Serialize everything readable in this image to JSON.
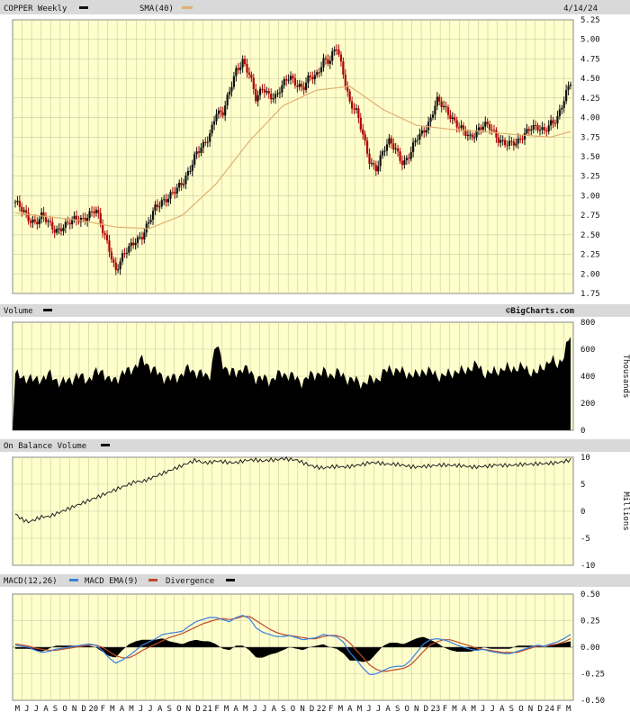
{
  "colors": {
    "plot_bg": "#ffffcc",
    "grid": "#c9c9a0",
    "header_bg": "#d9d9d9",
    "frame": "#888888",
    "up": "#111111",
    "down": "#b00000",
    "sma": "#e0b070",
    "macd": "#3a7fe0",
    "ema": "#c04a2a",
    "fill": "#000000",
    "text": "#111111"
  },
  "header": {
    "symbol_label": "COPPER Weekly",
    "sma_label": "SMA(40)",
    "date": "4/14/24"
  },
  "watermark": "©BigCharts.com",
  "panels": {
    "price": {
      "y_ticks": [
        "5.25",
        "5.00",
        "4.75",
        "4.50",
        "4.25",
        "4.00",
        "3.75",
        "3.50",
        "3.25",
        "3.00",
        "2.75",
        "2.50",
        "2.25",
        "2.00",
        "1.75"
      ]
    },
    "volume": {
      "title": "Volume",
      "y_ticks": [
        "800",
        "600",
        "400",
        "200",
        "0"
      ],
      "unit": "Thousands"
    },
    "obv": {
      "title": "On Balance Volume",
      "y_ticks": [
        "10",
        "5",
        "0",
        "-5",
        "-10"
      ],
      "unit": "Millions"
    },
    "macd": {
      "labels": [
        "MACD(12,26)",
        "MACD EMA(9)",
        "Divergence"
      ],
      "y_ticks": [
        "0.50",
        "0.25",
        "0.00",
        "-0.25",
        "-0.50"
      ]
    }
  },
  "x_axis": {
    "labels": [
      "M",
      "J",
      "J",
      "A",
      "S",
      "O",
      "N",
      "D",
      "20",
      "F",
      "M",
      "A",
      "M",
      "J",
      "J",
      "A",
      "S",
      "O",
      "N",
      "D",
      "21",
      "F",
      "M",
      "A",
      "M",
      "J",
      "J",
      "A",
      "S",
      "O",
      "N",
      "D",
      "22",
      "F",
      "M",
      "A",
      "M",
      "J",
      "J",
      "A",
      "S",
      "O",
      "N",
      "D",
      "23",
      "F",
      "M",
      "A",
      "M",
      "J",
      "J",
      "A",
      "S",
      "O",
      "N",
      "D",
      "24",
      "F",
      "M"
    ]
  },
  "chart_data": [
    {
      "type": "candlestick",
      "title": "COPPER Weekly",
      "ylim": [
        1.75,
        5.25
      ],
      "sma_period": 40,
      "close_path": [
        [
          0,
          2.92
        ],
        [
          1,
          2.8
        ],
        [
          2,
          2.7
        ],
        [
          3,
          2.68
        ],
        [
          4,
          2.75
        ],
        [
          5,
          2.62
        ],
        [
          6,
          2.55
        ],
        [
          7,
          2.62
        ],
        [
          8,
          2.65
        ],
        [
          9,
          2.68
        ],
        [
          10,
          2.7
        ],
        [
          11,
          2.78
        ],
        [
          12,
          2.82
        ],
        [
          13,
          2.55
        ],
        [
          14,
          2.35
        ],
        [
          15,
          2.05
        ],
        [
          16,
          2.2
        ],
        [
          17,
          2.32
        ],
        [
          18,
          2.45
        ],
        [
          19,
          2.5
        ],
        [
          20,
          2.65
        ],
        [
          21,
          2.85
        ],
        [
          22,
          2.95
        ],
        [
          23,
          3.0
        ],
        [
          24,
          3.05
        ],
        [
          25,
          3.15
        ],
        [
          26,
          3.35
        ],
        [
          27,
          3.55
        ],
        [
          28,
          3.6
        ],
        [
          29,
          3.75
        ],
        [
          30,
          4.1
        ],
        [
          31,
          4.05
        ],
        [
          32,
          4.3
        ],
        [
          33,
          4.6
        ],
        [
          34,
          4.75
        ],
        [
          35,
          4.55
        ],
        [
          36,
          4.2
        ],
        [
          37,
          4.4
        ],
        [
          38,
          4.3
        ],
        [
          39,
          4.25
        ],
        [
          40,
          4.4
        ],
        [
          41,
          4.55
        ],
        [
          42,
          4.45
        ],
        [
          43,
          4.35
        ],
        [
          44,
          4.5
        ],
        [
          45,
          4.55
        ],
        [
          46,
          4.75
        ],
        [
          47,
          4.7
        ],
        [
          48,
          4.9
        ],
        [
          49,
          4.6
        ],
        [
          50,
          4.2
        ],
        [
          51,
          4.05
        ],
        [
          52,
          3.75
        ],
        [
          53,
          3.45
        ],
        [
          54,
          3.35
        ],
        [
          55,
          3.55
        ],
        [
          56,
          3.7
        ],
        [
          57,
          3.6
        ],
        [
          58,
          3.4
        ],
        [
          59,
          3.5
        ],
        [
          60,
          3.75
        ],
        [
          61,
          3.85
        ],
        [
          62,
          3.95
        ],
        [
          63,
          4.2
        ],
        [
          64,
          4.15
        ],
        [
          65,
          4.05
        ],
        [
          66,
          3.9
        ],
        [
          67,
          3.8
        ],
        [
          68,
          3.75
        ],
        [
          69,
          3.85
        ],
        [
          70,
          3.9
        ],
        [
          71,
          3.85
        ],
        [
          72,
          3.75
        ],
        [
          73,
          3.7
        ],
        [
          74,
          3.65
        ],
        [
          75,
          3.65
        ],
        [
          76,
          3.8
        ],
        [
          77,
          3.9
        ],
        [
          78,
          3.85
        ],
        [
          79,
          3.8
        ],
        [
          80,
          3.95
        ],
        [
          81,
          4.0
        ],
        [
          82,
          4.2
        ],
        [
          83,
          4.45
        ]
      ],
      "sma_path": [
        [
          0,
          2.78
        ],
        [
          10,
          2.68
        ],
        [
          15,
          2.6
        ],
        [
          20,
          2.58
        ],
        [
          25,
          2.75
        ],
        [
          30,
          3.15
        ],
        [
          35,
          3.7
        ],
        [
          40,
          4.15
        ],
        [
          45,
          4.35
        ],
        [
          50,
          4.4
        ],
        [
          55,
          4.1
        ],
        [
          60,
          3.9
        ],
        [
          65,
          3.85
        ],
        [
          70,
          3.82
        ],
        [
          75,
          3.78
        ],
        [
          80,
          3.75
        ],
        [
          83,
          3.82
        ]
      ]
    },
    {
      "type": "area",
      "title": "Volume",
      "unit": "Thousands",
      "ylim": [
        0,
        800
      ],
      "values": [
        420,
        380,
        400,
        360,
        390,
        410,
        380,
        350,
        370,
        400,
        390,
        380,
        420,
        450,
        360,
        380,
        420,
        440,
        480,
        520,
        480,
        430,
        400,
        380,
        390,
        420,
        460,
        430,
        410,
        400,
        640,
        500,
        430,
        420,
        470,
        430,
        390,
        380,
        370,
        400,
        420,
        410,
        380,
        360,
        400,
        420,
        430,
        410,
        430,
        400,
        380,
        360,
        350,
        370,
        380,
        420,
        460,
        440,
        430,
        420,
        400,
        450,
        430,
        410,
        400,
        420,
        440,
        430,
        470,
        480,
        430,
        420,
        440,
        460,
        450,
        470,
        460,
        440,
        420,
        480,
        520,
        480,
        560,
        700
      ]
    },
    {
      "type": "line",
      "title": "On Balance Volume",
      "unit": "Millions",
      "ylim": [
        -10,
        10
      ],
      "values": [
        -0.5,
        -1.5,
        -2,
        -1.5,
        -1,
        -1,
        -0.5,
        0,
        0.5,
        1,
        1.5,
        2,
        2.5,
        3,
        3.5,
        4,
        4.5,
        5,
        5.5,
        5.5,
        6,
        6.5,
        7,
        7.5,
        8,
        8.5,
        9,
        9.5,
        9,
        9,
        9.3,
        9.2,
        9,
        9,
        9.3,
        9.5,
        9.5,
        9.3,
        9.5,
        9.5,
        9.8,
        9.6,
        9.5,
        9,
        8.5,
        8.2,
        8,
        8.2,
        8.3,
        8.2,
        8.3,
        8.5,
        8.7,
        9,
        9,
        8.8,
        8.7,
        8.7,
        8.5,
        8.3,
        8.2,
        8.3,
        8.4,
        8.5,
        8.6,
        8.5,
        8.5,
        8.4,
        8.2,
        8.2,
        8.3,
        8.4,
        8.6,
        8.5,
        8.5,
        8.6,
        8.7,
        8.7,
        8.8,
        8.8,
        8.9,
        9,
        9.2,
        9.5
      ]
    },
    {
      "type": "line",
      "title": "MACD(12,26)",
      "ylim": [
        -0.5,
        0.5
      ],
      "series": [
        {
          "name": "MACD(12,26)",
          "values": [
            0.02,
            0.01,
            0,
            -0.03,
            -0.05,
            -0.04,
            -0.02,
            -0.01,
            0,
            0.01,
            0.02,
            0.03,
            0.02,
            -0.03,
            -0.1,
            -0.15,
            -0.12,
            -0.08,
            -0.03,
            0.02,
            0.05,
            0.08,
            0.12,
            0.13,
            0.14,
            0.15,
            0.2,
            0.24,
            0.26,
            0.28,
            0.28,
            0.26,
            0.24,
            0.28,
            0.3,
            0.27,
            0.18,
            0.14,
            0.12,
            0.1,
            0.1,
            0.11,
            0.09,
            0.07,
            0.08,
            0.09,
            0.12,
            0.11,
            0.1,
            0.05,
            -0.05,
            -0.12,
            -0.2,
            -0.26,
            -0.25,
            -0.22,
            -0.19,
            -0.18,
            -0.18,
            -0.13,
            -0.05,
            0.03,
            0.07,
            0.08,
            0.07,
            0.05,
            0.02,
            0,
            -0.02,
            -0.03,
            -0.02,
            -0.04,
            -0.05,
            -0.06,
            -0.06,
            -0.04,
            -0.02,
            0,
            0.02,
            0.01,
            0.03,
            0.05,
            0.08,
            0.12
          ]
        },
        {
          "name": "MACD EMA(9)",
          "values": [
            0.03,
            0.02,
            0.01,
            -0.01,
            -0.02,
            -0.03,
            -0.03,
            -0.02,
            -0.01,
            0,
            0.01,
            0.02,
            0.02,
            0,
            -0.04,
            -0.08,
            -0.1,
            -0.1,
            -0.07,
            -0.03,
            0,
            0.03,
            0.06,
            0.09,
            0.11,
            0.13,
            0.16,
            0.19,
            0.22,
            0.24,
            0.26,
            0.27,
            0.26,
            0.27,
            0.29,
            0.29,
            0.25,
            0.21,
            0.17,
            0.14,
            0.12,
            0.11,
            0.1,
            0.09,
            0.08,
            0.08,
            0.1,
            0.11,
            0.11,
            0.09,
            0.04,
            -0.03,
            -0.1,
            -0.17,
            -0.21,
            -0.23,
            -0.22,
            -0.21,
            -0.2,
            -0.17,
            -0.11,
            -0.04,
            0.02,
            0.05,
            0.07,
            0.07,
            0.05,
            0.03,
            0.01,
            -0.01,
            -0.02,
            -0.03,
            -0.04,
            -0.05,
            -0.05,
            -0.05,
            -0.03,
            -0.01,
            0.01,
            0.01,
            0.02,
            0.03,
            0.05,
            0.08
          ]
        }
      ]
    }
  ]
}
